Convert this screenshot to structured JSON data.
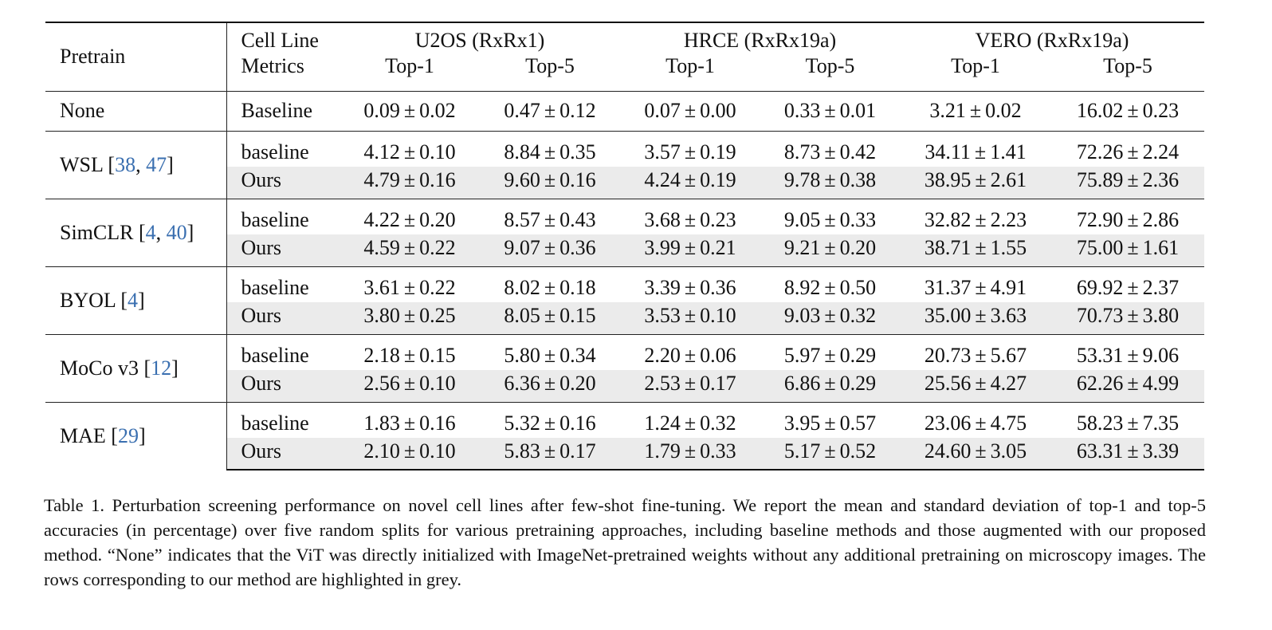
{
  "table": {
    "header": {
      "pretrain": "Pretrain",
      "cell_line": "Cell Line",
      "metrics": "Metrics",
      "groups": [
        "U2OS (RxRx1)",
        "HRCE (RxRx19a)",
        "VERO (RxRx19a)"
      ],
      "top1": "Top-1",
      "top5": "Top-5"
    },
    "pm": "±",
    "blocks": [
      {
        "name": "None",
        "cites": [],
        "rows": [
          {
            "metric": "Baseline",
            "ours": false,
            "vals": [
              [
                "0.09",
                "0.02"
              ],
              [
                "0.47",
                "0.12"
              ],
              [
                "0.07",
                "0.00"
              ],
              [
                "0.33",
                "0.01"
              ],
              [
                "3.21",
                "0.02"
              ],
              [
                "16.02",
                "0.23"
              ]
            ]
          }
        ]
      },
      {
        "name": "WSL",
        "cites": [
          "38",
          "47"
        ],
        "rows": [
          {
            "metric": "baseline",
            "ours": false,
            "vals": [
              [
                "4.12",
                "0.10"
              ],
              [
                "8.84",
                "0.35"
              ],
              [
                "3.57",
                "0.19"
              ],
              [
                "8.73",
                "0.42"
              ],
              [
                "34.11",
                "1.41"
              ],
              [
                "72.26",
                "2.24"
              ]
            ]
          },
          {
            "metric": "Ours",
            "ours": true,
            "vals": [
              [
                "4.79",
                "0.16"
              ],
              [
                "9.60",
                "0.16"
              ],
              [
                "4.24",
                "0.19"
              ],
              [
                "9.78",
                "0.38"
              ],
              [
                "38.95",
                "2.61"
              ],
              [
                "75.89",
                "2.36"
              ]
            ]
          }
        ]
      },
      {
        "name": "SimCLR",
        "cites": [
          "4",
          "40"
        ],
        "rows": [
          {
            "metric": "baseline",
            "ours": false,
            "vals": [
              [
                "4.22",
                "0.20"
              ],
              [
                "8.57",
                "0.43"
              ],
              [
                "3.68",
                "0.23"
              ],
              [
                "9.05",
                "0.33"
              ],
              [
                "32.82",
                "2.23"
              ],
              [
                "72.90",
                "2.86"
              ]
            ]
          },
          {
            "metric": "Ours",
            "ours": true,
            "vals": [
              [
                "4.59",
                "0.22"
              ],
              [
                "9.07",
                "0.36"
              ],
              [
                "3.99",
                "0.21"
              ],
              [
                "9.21",
                "0.20"
              ],
              [
                "38.71",
                "1.55"
              ],
              [
                "75.00",
                "1.61"
              ]
            ]
          }
        ]
      },
      {
        "name": "BYOL",
        "cites": [
          "4"
        ],
        "rows": [
          {
            "metric": "baseline",
            "ours": false,
            "vals": [
              [
                "3.61",
                "0.22"
              ],
              [
                "8.02",
                "0.18"
              ],
              [
                "3.39",
                "0.36"
              ],
              [
                "8.92",
                "0.50"
              ],
              [
                "31.37",
                "4.91"
              ],
              [
                "69.92",
                "2.37"
              ]
            ]
          },
          {
            "metric": "Ours",
            "ours": true,
            "vals": [
              [
                "3.80",
                "0.25"
              ],
              [
                "8.05",
                "0.15"
              ],
              [
                "3.53",
                "0.10"
              ],
              [
                "9.03",
                "0.32"
              ],
              [
                "35.00",
                "3.63"
              ],
              [
                "70.73",
                "3.80"
              ]
            ]
          }
        ]
      },
      {
        "name": "MoCo v3",
        "cites": [
          "12"
        ],
        "rows": [
          {
            "metric": "baseline",
            "ours": false,
            "vals": [
              [
                "2.18",
                "0.15"
              ],
              [
                "5.80",
                "0.34"
              ],
              [
                "2.20",
                "0.06"
              ],
              [
                "5.97",
                "0.29"
              ],
              [
                "20.73",
                "5.67"
              ],
              [
                "53.31",
                "9.06"
              ]
            ]
          },
          {
            "metric": "Ours",
            "ours": true,
            "vals": [
              [
                "2.56",
                "0.10"
              ],
              [
                "6.36",
                "0.20"
              ],
              [
                "2.53",
                "0.17"
              ],
              [
                "6.86",
                "0.29"
              ],
              [
                "25.56",
                "4.27"
              ],
              [
                "62.26",
                "4.99"
              ]
            ]
          }
        ]
      },
      {
        "name": "MAE",
        "cites": [
          "29"
        ],
        "rows": [
          {
            "metric": "baseline",
            "ours": false,
            "vals": [
              [
                "1.83",
                "0.16"
              ],
              [
                "5.32",
                "0.16"
              ],
              [
                "1.24",
                "0.32"
              ],
              [
                "3.95",
                "0.57"
              ],
              [
                "23.06",
                "4.75"
              ],
              [
                "58.23",
                "7.35"
              ]
            ]
          },
          {
            "metric": "Ours",
            "ours": true,
            "vals": [
              [
                "2.10",
                "0.10"
              ],
              [
                "5.83",
                "0.17"
              ],
              [
                "1.79",
                "0.33"
              ],
              [
                "5.17",
                "0.52"
              ],
              [
                "24.60",
                "3.05"
              ],
              [
                "63.31",
                "3.39"
              ]
            ]
          }
        ]
      }
    ]
  },
  "caption": "Table 1. Perturbation screening performance on novel cell lines after few-shot fine-tuning. We report the mean and standard deviation of top-1 and top-5 accuracies (in percentage) over five random splits for various pretraining approaches, including baseline methods and those augmented with our proposed method. “None” indicates that the ViT was directly initialized with ImageNet-pretrained weights without any additional pretraining on microscopy images. The rows corresponding to our method are highlighted in grey."
}
